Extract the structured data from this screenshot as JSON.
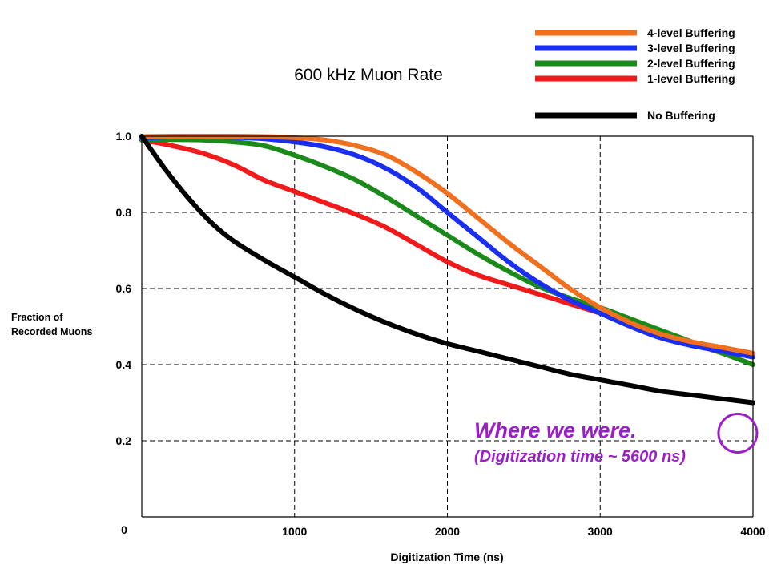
{
  "chart_data": {
    "type": "line",
    "title": "600 kHz Muon Rate",
    "xlabel": "Digitization Time (ns)",
    "ylabel": [
      "Fraction of",
      "Recorded Muons"
    ],
    "xlim": [
      0,
      4000
    ],
    "ylim": [
      0,
      1.0
    ],
    "x_ticks": [
      {
        "value": 1000,
        "label": "1000"
      },
      {
        "value": 2000,
        "label": "2000"
      },
      {
        "value": 3000,
        "label": "3000"
      },
      {
        "value": 4000,
        "label": "4000"
      }
    ],
    "y_ticks": [
      {
        "value": 0.2,
        "label": "0.2"
      },
      {
        "value": 0.4,
        "label": "0.4"
      },
      {
        "value": 0.6,
        "label": "0.6"
      },
      {
        "value": 0.8,
        "label": "0.8"
      },
      {
        "value": 1.0,
        "label": "1.0"
      }
    ],
    "origin_label": "0",
    "grid": true,
    "legend_position": "top-right",
    "series": [
      {
        "name": "4-level Buffering",
        "color": "#f07020",
        "points": [
          [
            0,
            0.999
          ],
          [
            200,
            1.0
          ],
          [
            400,
            1.0
          ],
          [
            600,
            1.0
          ],
          [
            800,
            0.999
          ],
          [
            1000,
            0.996
          ],
          [
            1200,
            0.99
          ],
          [
            1400,
            0.975
          ],
          [
            1600,
            0.95
          ],
          [
            1800,
            0.905
          ],
          [
            2000,
            0.85
          ],
          [
            2200,
            0.785
          ],
          [
            2400,
            0.72
          ],
          [
            2600,
            0.66
          ],
          [
            2800,
            0.6
          ],
          [
            3000,
            0.55
          ],
          [
            3200,
            0.51
          ],
          [
            3400,
            0.48
          ],
          [
            3600,
            0.46
          ],
          [
            3800,
            0.445
          ],
          [
            4000,
            0.43
          ]
        ]
      },
      {
        "name": "3-level Buffering",
        "color": "#1a2ef0",
        "points": [
          [
            0,
            0.995
          ],
          [
            200,
            0.998
          ],
          [
            400,
            0.999
          ],
          [
            600,
            0.997
          ],
          [
            800,
            0.993
          ],
          [
            1000,
            0.985
          ],
          [
            1200,
            0.972
          ],
          [
            1400,
            0.95
          ],
          [
            1600,
            0.915
          ],
          [
            1800,
            0.865
          ],
          [
            2000,
            0.8
          ],
          [
            2200,
            0.735
          ],
          [
            2400,
            0.67
          ],
          [
            2600,
            0.615
          ],
          [
            2800,
            0.57
          ],
          [
            3000,
            0.535
          ],
          [
            3200,
            0.5
          ],
          [
            3400,
            0.47
          ],
          [
            3600,
            0.45
          ],
          [
            3800,
            0.435
          ],
          [
            4000,
            0.42
          ]
        ]
      },
      {
        "name": "2-level Buffering",
        "color": "#1a8a1a",
        "points": [
          [
            0,
            0.99
          ],
          [
            200,
            0.991
          ],
          [
            400,
            0.99
          ],
          [
            600,
            0.985
          ],
          [
            800,
            0.975
          ],
          [
            1000,
            0.95
          ],
          [
            1200,
            0.92
          ],
          [
            1400,
            0.885
          ],
          [
            1600,
            0.84
          ],
          [
            1800,
            0.79
          ],
          [
            2000,
            0.74
          ],
          [
            2200,
            0.69
          ],
          [
            2400,
            0.645
          ],
          [
            2600,
            0.605
          ],
          [
            2800,
            0.575
          ],
          [
            3000,
            0.55
          ],
          [
            3200,
            0.52
          ],
          [
            3400,
            0.49
          ],
          [
            3600,
            0.46
          ],
          [
            3800,
            0.43
          ],
          [
            4000,
            0.4
          ]
        ]
      },
      {
        "name": "1-level Buffering",
        "color": "#f01a1a",
        "points": [
          [
            0,
            0.99
          ],
          [
            200,
            0.975
          ],
          [
            400,
            0.955
          ],
          [
            600,
            0.925
          ],
          [
            800,
            0.885
          ],
          [
            1000,
            0.855
          ],
          [
            1200,
            0.825
          ],
          [
            1400,
            0.795
          ],
          [
            1600,
            0.76
          ],
          [
            1800,
            0.715
          ],
          [
            2000,
            0.67
          ],
          [
            2200,
            0.635
          ],
          [
            2400,
            0.61
          ],
          [
            2600,
            0.585
          ],
          [
            2800,
            0.56
          ],
          [
            3000,
            0.535
          ],
          [
            3200,
            0.505
          ],
          [
            3400,
            0.48
          ],
          [
            3600,
            0.455
          ],
          [
            3800,
            0.43
          ],
          [
            4000,
            0.4
          ]
        ]
      },
      {
        "name": "No Buffering",
        "color": "#000000",
        "points": [
          [
            0,
            1.0
          ],
          [
            150,
            0.915
          ],
          [
            300,
            0.84
          ],
          [
            450,
            0.775
          ],
          [
            600,
            0.725
          ],
          [
            800,
            0.675
          ],
          [
            1000,
            0.63
          ],
          [
            1200,
            0.585
          ],
          [
            1400,
            0.545
          ],
          [
            1600,
            0.51
          ],
          [
            1800,
            0.48
          ],
          [
            2000,
            0.455
          ],
          [
            2200,
            0.435
          ],
          [
            2400,
            0.415
          ],
          [
            2600,
            0.395
          ],
          [
            2800,
            0.375
          ],
          [
            3000,
            0.36
          ],
          [
            3200,
            0.345
          ],
          [
            3400,
            0.33
          ],
          [
            3600,
            0.32
          ],
          [
            3800,
            0.31
          ],
          [
            4000,
            0.3
          ]
        ]
      }
    ],
    "legend_order": [
      0,
      1,
      2,
      3,
      4
    ],
    "annotations": {
      "main": "Where we were.",
      "sub": "(Digitization time ~ 5600 ns)",
      "color": "#9b1fc8",
      "circle_at": [
        3900,
        0.22
      ]
    }
  }
}
